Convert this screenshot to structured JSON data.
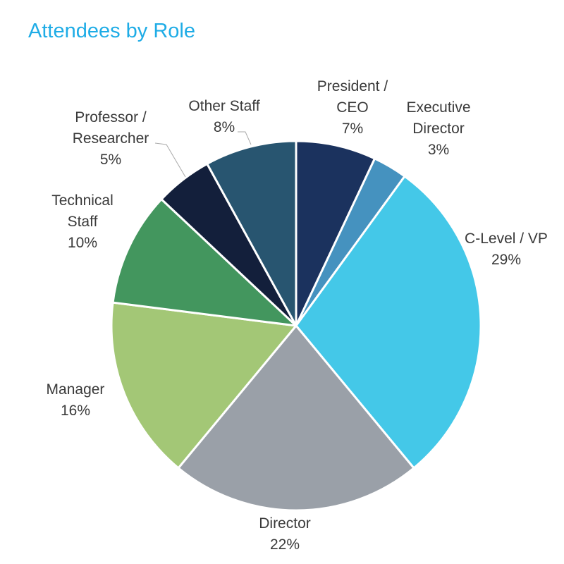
{
  "chart_data": {
    "type": "pie",
    "title": "Attendees by Role",
    "start": "top, clockwise",
    "slices": [
      {
        "label": [
          "President /",
          "CEO"
        ],
        "value": 7,
        "value_label": "7%",
        "color": "#1b325e"
      },
      {
        "label": [
          "Executive",
          "Director"
        ],
        "value": 3,
        "value_label": "3%",
        "color": "#4592bf"
      },
      {
        "label": [
          "C-Level / VP"
        ],
        "value": 29,
        "value_label": "29%",
        "color": "#44c8e8"
      },
      {
        "label": [
          "Director"
        ],
        "value": 22,
        "value_label": "22%",
        "color": "#9aa0a8"
      },
      {
        "label": [
          "Manager"
        ],
        "value": 16,
        "value_label": "16%",
        "color": "#a3c776"
      },
      {
        "label": [
          "Technical",
          "Staff"
        ],
        "value": 10,
        "value_label": "10%",
        "color": "#43965e"
      },
      {
        "label": [
          "Professor /",
          "Researcher"
        ],
        "value": 5,
        "value_label": "5%",
        "color": "#131f3b"
      },
      {
        "label": [
          "Other Staff"
        ],
        "value": 8,
        "value_label": "8%",
        "color": "#285570"
      }
    ]
  }
}
